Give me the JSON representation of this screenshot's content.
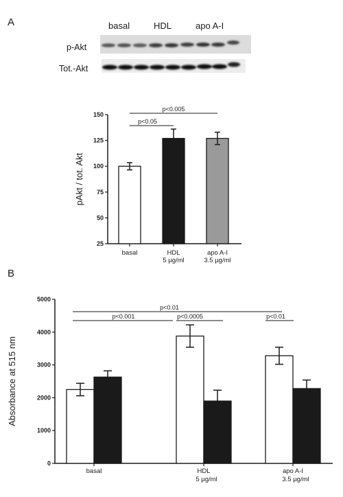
{
  "panels": {
    "a": "A",
    "b": "B"
  },
  "blot": {
    "column_labels": [
      "basal",
      "HDL",
      "apo A-I"
    ],
    "row_labels": [
      "p-Akt",
      "Tot.-Akt"
    ]
  },
  "colors": {
    "white_bar": "#ffffff",
    "black_bar": "#1a1a1a",
    "gray_bar": "#9a9a9a",
    "axis": "#1a1a1a"
  },
  "chart_data": [
    {
      "type": "bar",
      "panel": "A",
      "categories": [
        [
          "basal"
        ],
        [
          "HDL",
          "5 µg/ml"
        ],
        [
          "apo A-I",
          "3.5 µg/ml"
        ]
      ],
      "values": [
        100,
        127,
        127
      ],
      "errors": [
        3.5,
        9,
        6
      ],
      "bar_colors": [
        "#ffffff",
        "#1a1a1a",
        "#9a9a9a"
      ],
      "ylabel": "pAkt / tot. Akt",
      "ylim": [
        25,
        150
      ],
      "yticks": [
        25,
        50,
        75,
        100,
        125,
        150
      ],
      "significance": [
        {
          "from": 0,
          "to": 1,
          "label": "p<0.05"
        },
        {
          "from": 0,
          "to": 2,
          "label": "p<0.005"
        }
      ]
    },
    {
      "type": "bar",
      "panel": "B",
      "categories": [
        [
          "basal"
        ],
        [
          "HDL",
          "5 µg/ml"
        ],
        [
          "apo A-I",
          "3.5 µg/ml"
        ]
      ],
      "series": [
        {
          "values": [
            2250,
            3880,
            3280
          ],
          "errors": [
            190,
            340,
            260
          ],
          "color": "#ffffff"
        },
        {
          "values": [
            2630,
            1900,
            2280
          ],
          "errors": [
            190,
            330,
            260
          ],
          "color": "#1a1a1a"
        }
      ],
      "ylabel": "Absorbance at 515 nm",
      "ylim": [
        0,
        5000
      ],
      "yticks": [
        0,
        1000,
        2000,
        3000,
        4000,
        5000
      ],
      "significance": [
        {
          "from": [
            0,
            0
          ],
          "to": [
            1,
            0
          ],
          "label": "p<0.001"
        },
        {
          "from": [
            0,
            0
          ],
          "to": [
            2,
            0
          ],
          "label": "p<0.01"
        },
        {
          "from": [
            1,
            0
          ],
          "to": [
            1,
            1
          ],
          "label": "p<0.0005"
        },
        {
          "from": [
            2,
            0
          ],
          "to": [
            2,
            1
          ],
          "label": "p<0.01"
        }
      ]
    }
  ]
}
